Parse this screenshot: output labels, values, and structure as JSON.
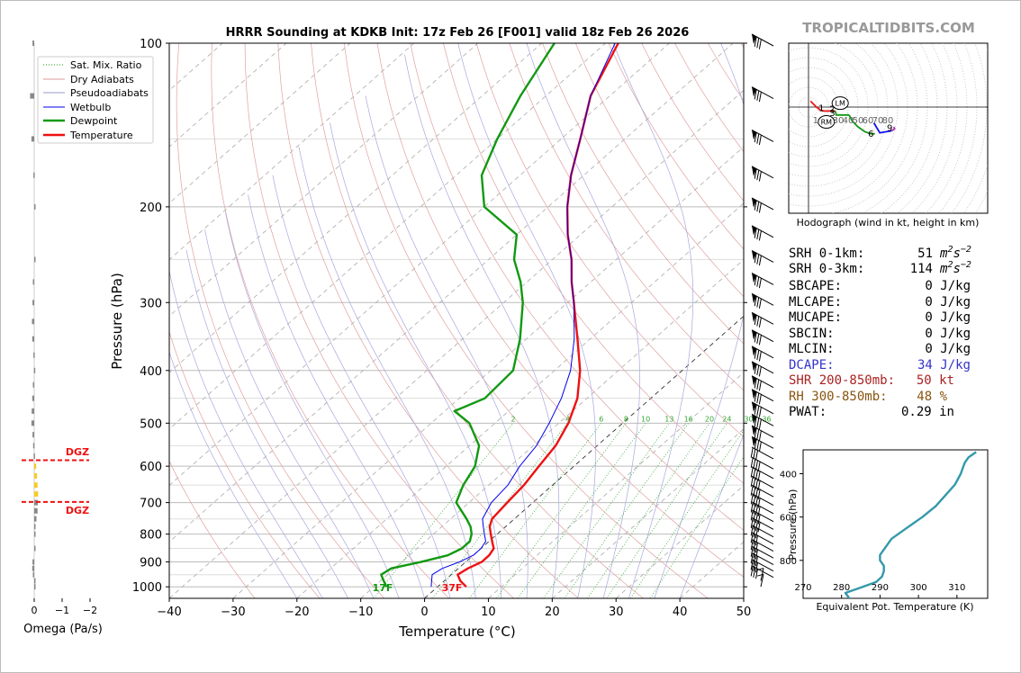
{
  "brand": "TROPICALTIDBITS.COM",
  "title": "HRRR Sounding at KDKB Init: 17z Feb 26 [F001] valid 18z Feb 26 2026",
  "chart_data": [
    {
      "type": "line",
      "chart": "skew-t",
      "xlabel": "Temperature (°C)",
      "ylabel": "Pressure (hPa)",
      "xlim": [
        -40,
        50
      ],
      "ylim": [
        1050,
        100
      ],
      "yscale": "log",
      "xticks": [
        "−40",
        "−30",
        "−20",
        "−10",
        "0",
        "10",
        "20",
        "30",
        "40",
        "50"
      ],
      "yticks": [
        "100",
        "200",
        "300",
        "400",
        "500",
        "600",
        "700",
        "800",
        "900",
        "1000"
      ],
      "legend": [
        "Sat. Mix. Ratio",
        "Dry Adiabats",
        "Pseudoadiabats",
        "Wetbulb",
        "Dewpoint",
        "Temperature"
      ],
      "legend_position": "top-left",
      "mixing_ratio_labels": [
        "2",
        "4",
        "6",
        "8",
        "10",
        "13",
        "16",
        "20",
        "24",
        "30",
        "36"
      ],
      "surface_labels": {
        "dewpoint": "17F",
        "temperature": "37F"
      },
      "series": [
        {
          "name": "Temperature",
          "color": "#ee1111",
          "points": [
            [
              1000,
              4.5
            ],
            [
              975,
              2.5
            ],
            [
              950,
              1.0
            ],
            [
              925,
              1.5
            ],
            [
              900,
              2.5
            ],
            [
              875,
              2.5
            ],
            [
              850,
              2.0
            ],
            [
              825,
              0.5
            ],
            [
              800,
              -1
            ],
            [
              775,
              -2.5
            ],
            [
              750,
              -3.5
            ],
            [
              700,
              -4
            ],
            [
              650,
              -4.5
            ],
            [
              600,
              -5.5
            ],
            [
              550,
              -6.5
            ],
            [
              500,
              -8.5
            ],
            [
              450,
              -11.5
            ],
            [
              400,
              -16
            ],
            [
              350,
              -22
            ],
            [
              300,
              -29
            ],
            [
              275,
              -33
            ],
            [
              250,
              -37
            ],
            [
              225,
              -42
            ],
            [
              200,
              -47
            ],
            [
              175,
              -52
            ],
            [
              150,
              -57
            ],
            [
              125,
              -63
            ],
            [
              100,
              -68
            ]
          ]
        },
        {
          "name": "Dewpoint",
          "color": "#119911",
          "points": [
            [
              1000,
              -8
            ],
            [
              975,
              -9.5
            ],
            [
              950,
              -11
            ],
            [
              925,
              -10.5
            ],
            [
              900,
              -7
            ],
            [
              875,
              -4
            ],
            [
              850,
              -3
            ],
            [
              825,
              -3
            ],
            [
              800,
              -4
            ],
            [
              775,
              -5.5
            ],
            [
              750,
              -7.5
            ],
            [
              700,
              -12
            ],
            [
              650,
              -14
            ],
            [
              600,
              -15.5
            ],
            [
              550,
              -18.5
            ],
            [
              500,
              -24
            ],
            [
              475,
              -28.5
            ],
            [
              450,
              -26
            ],
            [
              400,
              -26.5
            ],
            [
              350,
              -31
            ],
            [
              300,
              -37
            ],
            [
              275,
              -41
            ],
            [
              250,
              -46
            ],
            [
              225,
              -50
            ],
            [
              200,
              -60
            ],
            [
              175,
              -66
            ],
            [
              150,
              -70
            ],
            [
              125,
              -74
            ],
            [
              100,
              -78
            ]
          ]
        },
        {
          "name": "Wetbulb",
          "color": "#0000ee",
          "points": [
            [
              1000,
              -1
            ],
            [
              975,
              -2
            ],
            [
              950,
              -3
            ],
            [
              925,
              -2.5
            ],
            [
              900,
              -1
            ],
            [
              875,
              0
            ],
            [
              850,
              0
            ],
            [
              825,
              -0.5
            ],
            [
              800,
              -2
            ],
            [
              775,
              -3.5
            ],
            [
              750,
              -5
            ],
            [
              700,
              -6.5
            ],
            [
              650,
              -7
            ],
            [
              600,
              -8.5
            ],
            [
              550,
              -9.5
            ],
            [
              500,
              -11.5
            ],
            [
              450,
              -14
            ],
            [
              400,
              -17.5
            ],
            [
              350,
              -22.5
            ],
            [
              300,
              -29
            ],
            [
              275,
              -33
            ],
            [
              250,
              -37
            ],
            [
              225,
              -42
            ],
            [
              200,
              -47
            ],
            [
              175,
              -52
            ],
            [
              150,
              -57
            ],
            [
              125,
              -63
            ],
            [
              100,
              -68.5
            ]
          ]
        }
      ]
    },
    {
      "type": "bar",
      "chart": "omega-profile",
      "xlabel": "Omega (Pa/s)",
      "xticks": [
        "0",
        "−1",
        "−2"
      ],
      "dgz_label": "DGZ",
      "dgz_bounds_hpa": [
        585,
        698
      ],
      "series": [
        {
          "name": "omega",
          "points": [
            [
              1000,
              -0.05
            ],
            [
              975,
              -0.05
            ],
            [
              950,
              0.05
            ],
            [
              925,
              0.07
            ],
            [
              900,
              0.06
            ],
            [
              850,
              -0.02
            ],
            [
              800,
              -0.03
            ],
            [
              775,
              -0.03
            ],
            [
              750,
              -0.08
            ],
            [
              725,
              -0.12
            ],
            [
              700,
              -0.13
            ],
            [
              675,
              -0.14
            ],
            [
              650,
              -0.12
            ],
            [
              625,
              -0.1
            ],
            [
              600,
              -0.07
            ],
            [
              575,
              0.02
            ],
            [
              550,
              0.04
            ],
            [
              525,
              0.06
            ],
            [
              500,
              0.1
            ],
            [
              475,
              0.09
            ],
            [
              450,
              0.07
            ],
            [
              425,
              0.05
            ],
            [
              400,
              0.01
            ],
            [
              375,
              0.03
            ],
            [
              350,
              0.07
            ],
            [
              325,
              0.08
            ],
            [
              300,
              0.06
            ],
            [
              275,
              0.05
            ],
            [
              250,
              -0.01
            ],
            [
              200,
              -0.01
            ],
            [
              175,
              0.03
            ],
            [
              150,
              0.1
            ],
            [
              125,
              0.15
            ],
            [
              100,
              0.06
            ]
          ]
        }
      ]
    },
    {
      "type": "line",
      "chart": "hodograph",
      "caption": "Hodograph (wind in kt, height in km)",
      "ring_labels": [
        "10",
        "20",
        "30",
        "40",
        "50",
        "60",
        "70",
        "80"
      ],
      "markers": [
        "LM",
        "RM"
      ],
      "height_labels": [
        "1",
        "2",
        "3",
        "6",
        "9"
      ],
      "series": [
        {
          "name": "0-1km",
          "color": "#ee1111",
          "points": [
            [
              2,
              6
            ],
            [
              4,
              4
            ],
            [
              8,
              0
            ],
            [
              12,
              -3
            ],
            [
              15,
              -4
            ]
          ]
        },
        {
          "name": "1-3km",
          "color": "#ee1111",
          "points": [
            [
              15,
              -4
            ],
            [
              22,
              -4
            ],
            [
              27,
              -4
            ]
          ]
        },
        {
          "name": "3km",
          "color": "#119911",
          "points": [
            [
              27,
              -4
            ],
            [
              28,
              -8
            ],
            [
              36,
              -8
            ],
            [
              41,
              -8
            ]
          ]
        },
        {
          "name": "3-6km",
          "color": "#119911",
          "points": [
            [
              41,
              -8
            ],
            [
              44,
              -14
            ],
            [
              50,
              -20
            ],
            [
              57,
              -25
            ],
            [
              63,
              -27
            ],
            [
              67,
              -27
            ]
          ]
        },
        {
          "name": "6-9km",
          "color": "#1111ee",
          "points": [
            [
              66,
              -16
            ],
            [
              72,
              -26
            ],
            [
              78,
              -25
            ],
            [
              84,
              -24
            ]
          ]
        },
        {
          "name": "9-12km",
          "color": "#aa33aa",
          "points": [
            [
              84,
              -24
            ],
            [
              87,
              -22
            ],
            [
              86,
              -20
            ]
          ]
        }
      ],
      "lm": [
        32,
        4
      ],
      "rm": [
        18,
        -15
      ]
    },
    {
      "type": "line",
      "chart": "theta-e",
      "xlabel": "Equivalent Pot. Temperature (K)",
      "ylabel": "Pressure (hPa)",
      "xlim": [
        270,
        318
      ],
      "xticks": [
        "270",
        "280",
        "290",
        "300",
        "310"
      ],
      "yticks": [
        "400",
        "600",
        "800"
      ],
      "color": "#3399aa",
      "series": [
        {
          "name": "theta-e",
          "points": [
            [
              1000,
              283
            ],
            [
              975,
              282
            ],
            [
              950,
              281
            ],
            [
              925,
              285
            ],
            [
              900,
              289
            ],
            [
              875,
              290.5
            ],
            [
              850,
              291
            ],
            [
              825,
              291
            ],
            [
              800,
              290
            ],
            [
              775,
              290
            ],
            [
              750,
              291
            ],
            [
              700,
              293
            ],
            [
              650,
              297
            ],
            [
              600,
              301
            ],
            [
              550,
              304.5
            ],
            [
              500,
              307
            ],
            [
              450,
              309.5
            ],
            [
              400,
              311
            ],
            [
              350,
              312
            ],
            [
              325,
              313
            ],
            [
              300,
              315
            ]
          ]
        }
      ]
    }
  ],
  "barbs": {
    "levels": [
      1000,
      975,
      950,
      925,
      900,
      875,
      850,
      825,
      800,
      775,
      750,
      725,
      700,
      675,
      650,
      625,
      600,
      575,
      550,
      525,
      500,
      475,
      450,
      425,
      400,
      375,
      350,
      325,
      300,
      275,
      250,
      225,
      200,
      175,
      150,
      125,
      100
    ]
  },
  "stats": {
    "srh01": {
      "label": "SRH 0-1km:",
      "value": "51"
    },
    "srh03": {
      "label": "SRH 0-3km:",
      "value": "114"
    },
    "srh_unit_base": "m",
    "srh_unit_sup1": "2",
    "srh_unit_mid": "s",
    "srh_unit_sup2": "−2",
    "sbcape": {
      "label": "SBCAPE:",
      "value": "0 J/kg"
    },
    "mlcape": {
      "label": "MLCAPE:",
      "value": "0 J/kg"
    },
    "mucape": {
      "label": "MUCAPE:",
      "value": "0 J/kg"
    },
    "sbcin": {
      "label": "SBCIN:",
      "value": "0 J/kg"
    },
    "mlcin": {
      "label": "MLCIN:",
      "value": "0 J/kg"
    },
    "dcape": {
      "label": "DCAPE:",
      "value": "34 J/kg",
      "color": "#3333cc"
    },
    "shr": {
      "label": "SHR 200-850mb:",
      "value": "50 kt",
      "color": "#aa2222"
    },
    "rh": {
      "label": "RH 300-850mb:",
      "value": "48 %",
      "color": "#885511"
    },
    "pwat": {
      "label": "PWAT:",
      "value": "0.29 in"
    }
  }
}
